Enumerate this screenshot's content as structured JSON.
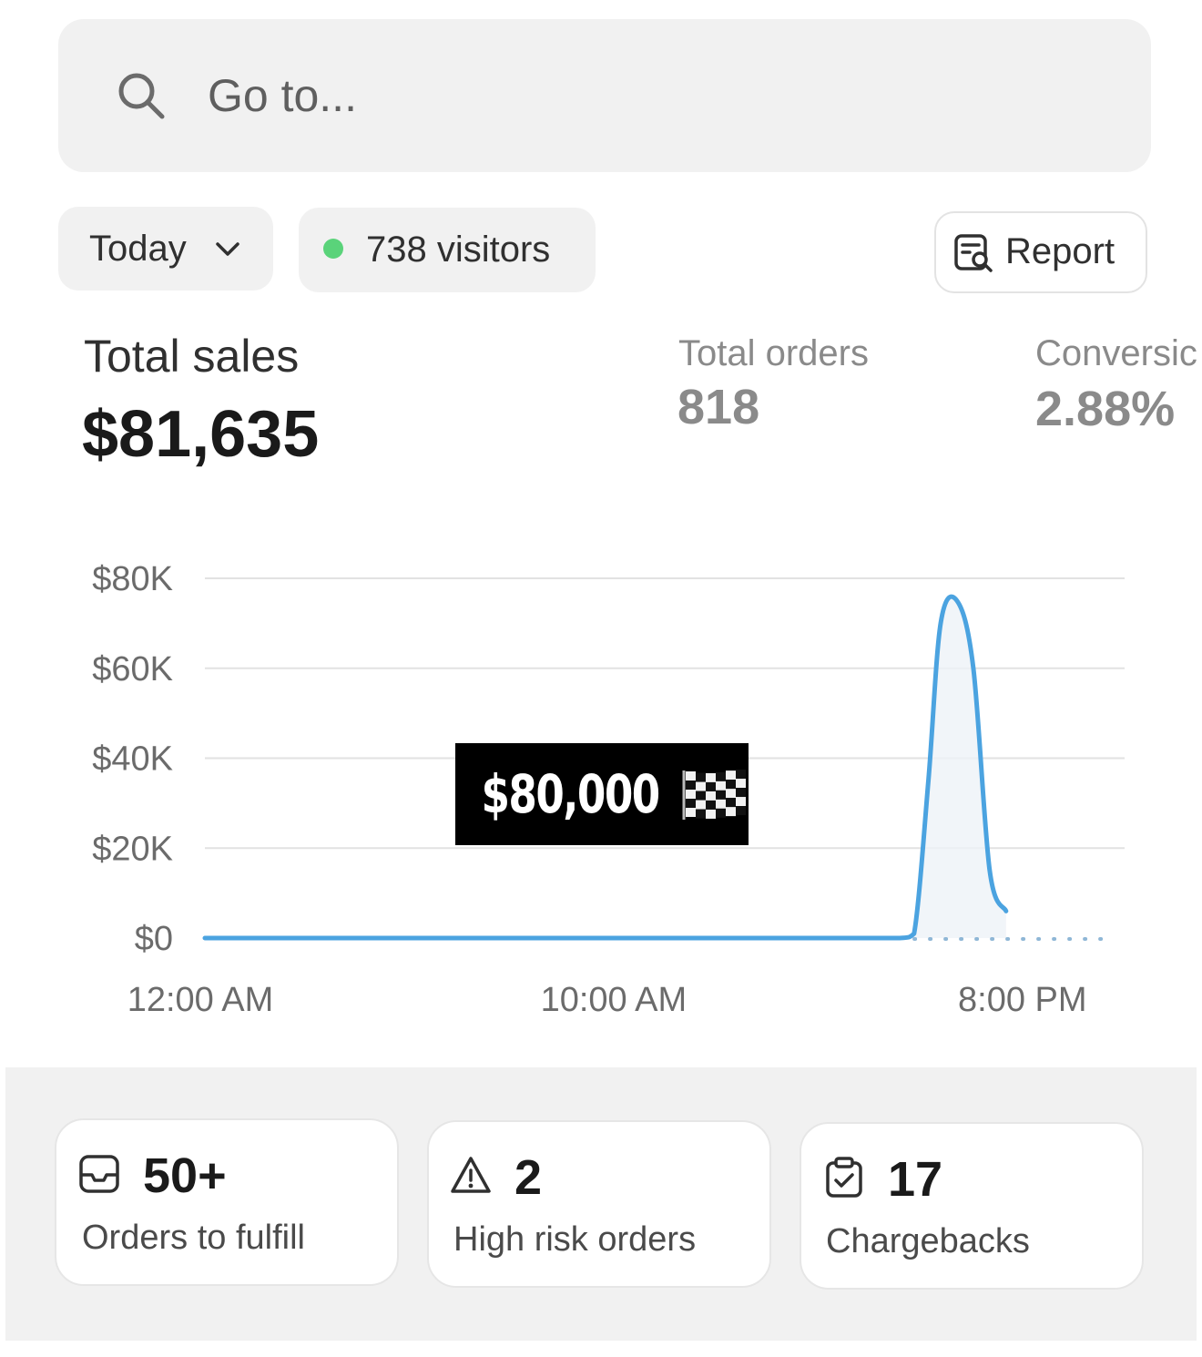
{
  "search": {
    "placeholder": "Go to...",
    "icon": "search-icon"
  },
  "filters": {
    "date_label": "Today",
    "visitors_label": "738 visitors",
    "live_dot_color": "#5ad37a"
  },
  "report_button": {
    "label": "Report",
    "icon": "report-search-icon"
  },
  "kpis": {
    "total_sales": {
      "label": "Total sales",
      "value": "$81,635"
    },
    "total_orders": {
      "label": "Total orders",
      "value": "818"
    },
    "conversion": {
      "label": "Conversic",
      "value": "2.88%"
    }
  },
  "chart_data": {
    "type": "line",
    "y_ticks": [
      "$80K",
      "$60K",
      "$40K",
      "$20K",
      "$0"
    ],
    "y_tick_values": [
      80000,
      60000,
      40000,
      20000,
      0
    ],
    "x_ticks": [
      "12:00 AM",
      "10:00 AM",
      "8:00 PM"
    ],
    "ylim": [
      0,
      80000
    ],
    "series": [
      {
        "color": "#4ba3e0",
        "x_hours": [
          0,
          4,
          8,
          12,
          16,
          17,
          17.35,
          17.7,
          18.0,
          18.4,
          18.8,
          19.2,
          19.6
        ],
        "values": [
          0,
          0,
          0,
          0,
          0,
          0,
          1000,
          35000,
          70000,
          75000,
          60000,
          15000,
          6000
        ]
      }
    ],
    "comparison_dotted_from_hour": 17,
    "grid": true,
    "legend": "none"
  },
  "goal_badge": {
    "text": "$80,000",
    "icon": "checkered-flag-icon"
  },
  "cards": [
    {
      "number": "50+",
      "label": "Orders to fulfill",
      "icon": "inbox-icon"
    },
    {
      "number": "2",
      "label": "High risk orders",
      "icon": "warning-icon"
    },
    {
      "number": "17",
      "label": "Chargebacks",
      "icon": "clipboard-check-icon"
    }
  ]
}
